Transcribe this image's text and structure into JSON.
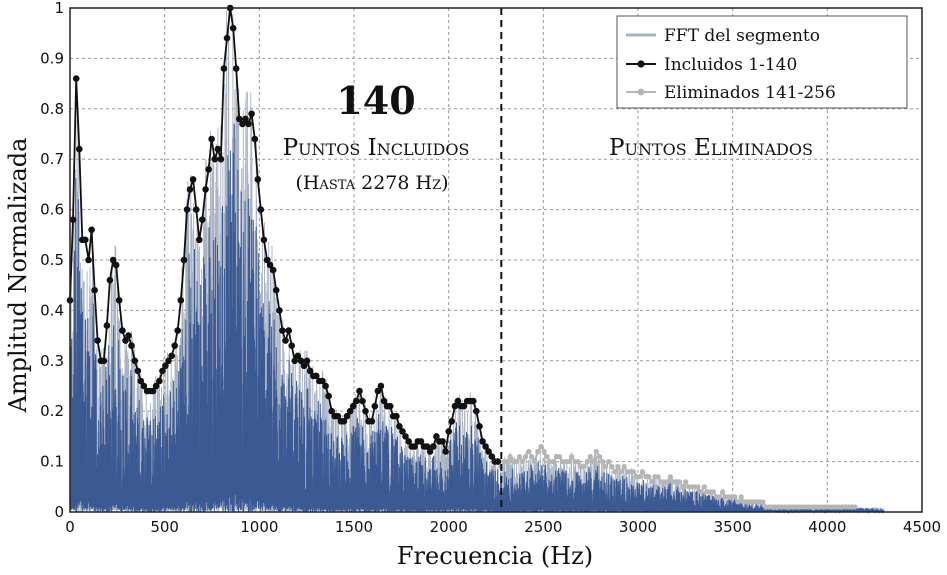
{
  "chart_data": {
    "type": "line",
    "title": "",
    "xlabel": "Frecuencia (Hz)",
    "ylabel": "Amplitud Normalizada",
    "xlim": [
      0,
      4500
    ],
    "ylim": [
      0,
      1
    ],
    "x_ticks": [
      0,
      500,
      1000,
      1500,
      2000,
      2500,
      3000,
      3500,
      4000,
      4500
    ],
    "y_ticks": [
      0,
      0.1,
      0.2,
      0.3,
      0.4,
      0.5,
      0.6,
      0.7,
      0.8,
      0.9,
      1
    ],
    "grid": true,
    "legend": "top-right",
    "cutoff_x": 2278,
    "colors": {
      "fft_light": "#a9b3c4",
      "fft_dark": "#3b5a94",
      "included": "#111111",
      "eliminated": "#b5b5b5"
    },
    "annotations": {
      "count": "140",
      "included_label": "Puntos Incluidos",
      "included_sub": "(Hasta 2278 Hz)",
      "eliminated_label": "Puntos Eliminados"
    },
    "series": [
      {
        "name": "FFT del segmento",
        "style": "line"
      },
      {
        "name": "Incluidos 1-140",
        "style": "line-marker",
        "x": [
          0,
          16,
          33,
          49,
          65,
          81,
          98,
          114,
          130,
          146,
          163,
          179,
          195,
          211,
          228,
          244,
          260,
          277,
          293,
          309,
          325,
          342,
          358,
          374,
          390,
          407,
          423,
          439,
          455,
          472,
          488,
          504,
          520,
          537,
          553,
          569,
          585,
          602,
          618,
          634,
          650,
          667,
          683,
          699,
          716,
          732,
          748,
          764,
          781,
          797,
          813,
          829,
          846,
          862,
          878,
          894,
          911,
          927,
          943,
          959,
          976,
          992,
          1008,
          1024,
          1041,
          1057,
          1073,
          1089,
          1106,
          1122,
          1138,
          1155,
          1171,
          1187,
          1203,
          1220,
          1236,
          1252,
          1268,
          1285,
          1301,
          1317,
          1333,
          1350,
          1366,
          1382,
          1398,
          1415,
          1431,
          1447,
          1463,
          1480,
          1496,
          1512,
          1529,
          1545,
          1561,
          1577,
          1594,
          1610,
          1626,
          1642,
          1659,
          1675,
          1691,
          1707,
          1724,
          1740,
          1756,
          1772,
          1789,
          1805,
          1821,
          1837,
          1854,
          1870,
          1886,
          1902,
          1919,
          1935,
          1951,
          1968,
          1984,
          2000,
          2016,
          2033,
          2049,
          2065,
          2081,
          2098,
          2114,
          2130,
          2146,
          2163,
          2179,
          2195,
          2211,
          2228,
          2244,
          2260
        ],
        "y": [
          0.42,
          0.58,
          0.86,
          0.72,
          0.54,
          0.54,
          0.5,
          0.56,
          0.44,
          0.34,
          0.3,
          0.3,
          0.37,
          0.46,
          0.5,
          0.49,
          0.42,
          0.36,
          0.34,
          0.35,
          0.33,
          0.3,
          0.28,
          0.26,
          0.25,
          0.24,
          0.24,
          0.24,
          0.25,
          0.26,
          0.28,
          0.29,
          0.3,
          0.31,
          0.33,
          0.36,
          0.42,
          0.5,
          0.6,
          0.64,
          0.66,
          0.6,
          0.54,
          0.58,
          0.64,
          0.68,
          0.74,
          0.7,
          0.72,
          0.7,
          0.88,
          0.94,
          1.0,
          0.96,
          0.88,
          0.78,
          0.77,
          0.78,
          0.77,
          0.79,
          0.74,
          0.66,
          0.6,
          0.54,
          0.5,
          0.49,
          0.48,
          0.44,
          0.4,
          0.36,
          0.34,
          0.36,
          0.33,
          0.3,
          0.31,
          0.3,
          0.29,
          0.3,
          0.28,
          0.27,
          0.27,
          0.26,
          0.26,
          0.25,
          0.23,
          0.2,
          0.19,
          0.19,
          0.18,
          0.18,
          0.19,
          0.2,
          0.21,
          0.22,
          0.24,
          0.22,
          0.2,
          0.18,
          0.18,
          0.21,
          0.24,
          0.25,
          0.22,
          0.21,
          0.21,
          0.19,
          0.19,
          0.17,
          0.16,
          0.15,
          0.14,
          0.13,
          0.13,
          0.14,
          0.14,
          0.13,
          0.13,
          0.12,
          0.13,
          0.15,
          0.14,
          0.14,
          0.12,
          0.16,
          0.18,
          0.21,
          0.22,
          0.21,
          0.21,
          0.22,
          0.22,
          0.22,
          0.2,
          0.17,
          0.14,
          0.13,
          0.12,
          0.11,
          0.1,
          0.1
        ]
      },
      {
        "name": "Eliminados 141-256",
        "style": "line-marker",
        "x": [
          2276,
          2292,
          2309,
          2325,
          2341,
          2358,
          2374,
          2390,
          2406,
          2423,
          2439,
          2455,
          2471,
          2488,
          2504,
          2520,
          2536,
          2553,
          2569,
          2585,
          2601,
          2618,
          2634,
          2650,
          2667,
          2683,
          2699,
          2715,
          2732,
          2748,
          2764,
          2780,
          2797,
          2813,
          2829,
          2845,
          2862,
          2878,
          2894,
          2910,
          2927,
          2943,
          2959,
          2976,
          2992,
          3008,
          3024,
          3041,
          3057,
          3073,
          3089,
          3106,
          3122,
          3138,
          3154,
          3171,
          3187,
          3203,
          3219,
          3236,
          3252,
          3268,
          3285,
          3301,
          3317,
          3333,
          3350,
          3366,
          3382,
          3398,
          3415,
          3431,
          3447,
          3463,
          3480,
          3496,
          3512,
          3528,
          3545,
          3561,
          3577,
          3594,
          3610,
          3626,
          3642,
          3659,
          3675,
          3691,
          3707,
          3724,
          3740,
          3756,
          3772,
          3789,
          3805,
          3821,
          3837,
          3854,
          3870,
          3886,
          3902,
          3919,
          3935,
          3951,
          3968,
          3984,
          4000,
          4016,
          4033,
          4049,
          4065,
          4081,
          4098,
          4114,
          4130,
          4146
        ],
        "y": [
          0.09,
          0.1,
          0.1,
          0.11,
          0.1,
          0.1,
          0.11,
          0.1,
          0.11,
          0.12,
          0.11,
          0.1,
          0.12,
          0.13,
          0.12,
          0.11,
          0.1,
          0.1,
          0.11,
          0.11,
          0.1,
          0.1,
          0.1,
          0.11,
          0.1,
          0.1,
          0.09,
          0.09,
          0.1,
          0.11,
          0.1,
          0.12,
          0.11,
          0.1,
          0.09,
          0.1,
          0.09,
          0.08,
          0.09,
          0.08,
          0.09,
          0.08,
          0.08,
          0.08,
          0.07,
          0.07,
          0.08,
          0.07,
          0.07,
          0.06,
          0.07,
          0.07,
          0.06,
          0.06,
          0.06,
          0.07,
          0.06,
          0.06,
          0.06,
          0.05,
          0.06,
          0.05,
          0.05,
          0.05,
          0.05,
          0.04,
          0.05,
          0.04,
          0.04,
          0.04,
          0.03,
          0.03,
          0.04,
          0.03,
          0.03,
          0.03,
          0.03,
          0.02,
          0.03,
          0.02,
          0.02,
          0.02,
          0.02,
          0.02,
          0.02,
          0.02,
          0.01,
          0.01,
          0.01,
          0.01,
          0.01,
          0.01,
          0.01,
          0.01,
          0.01,
          0.01,
          0.01,
          0.01,
          0.01,
          0.01,
          0.01,
          0.01,
          0.01,
          0.01,
          0.01,
          0.01,
          0.01,
          0.01,
          0.01,
          0.01,
          0.01,
          0.01,
          0.01,
          0.01,
          0.01,
          0.01
        ]
      }
    ]
  }
}
